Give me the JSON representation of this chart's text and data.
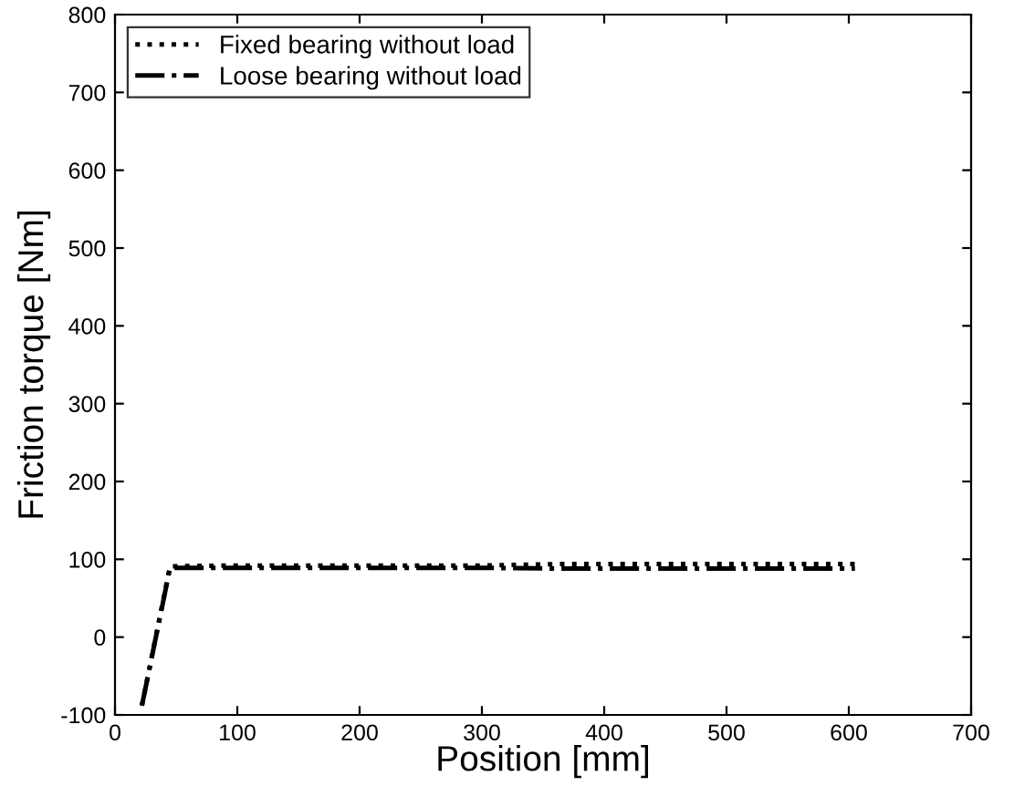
{
  "chart_data": {
    "type": "line",
    "xlabel": "Position [mm]",
    "ylabel": "Friction torque [Nm]",
    "xlim": [
      0,
      700
    ],
    "xticks": [
      0,
      100,
      200,
      300,
      400,
      500,
      600,
      700
    ],
    "ylim": [
      -100,
      800
    ],
    "yticks": [
      -100,
      0,
      100,
      200,
      300,
      400,
      500,
      600,
      700,
      800
    ],
    "grid": false,
    "legend": "top left",
    "marker": "none",
    "series": [
      {
        "name": "Fixed bearing without load",
        "color": "#000000",
        "line_style": "dotted",
        "x": [
          22,
          45,
          100,
          200,
          300,
          370,
          450,
          550,
          605
        ],
        "values": [
          -88,
          91,
          92,
          92,
          92,
          94,
          94,
          94,
          94
        ]
      },
      {
        "name": "Loose bearing without load",
        "color": "#000000",
        "line_style": "dashdot",
        "x": [
          22,
          45,
          100,
          200,
          300,
          370,
          450,
          550,
          605
        ],
        "values": [
          -88,
          89,
          89,
          89,
          89,
          88,
          88,
          88,
          88
        ]
      }
    ]
  }
}
